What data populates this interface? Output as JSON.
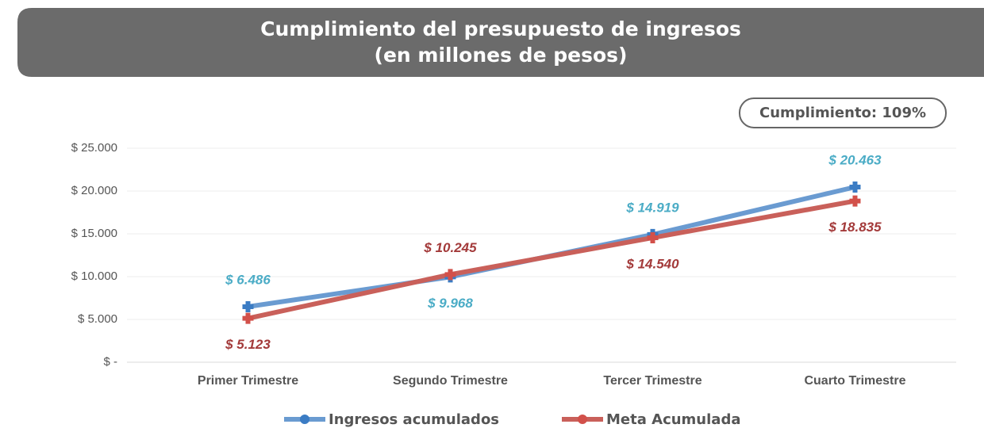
{
  "chart_data": {
    "type": "line",
    "title": "Cumplimiento del presupuesto de ingresos",
    "subtitle": "(en millones de pesos)",
    "annotation": "Cumplimiento: 109%",
    "categories": [
      "Primer Trimestre",
      "Segundo Trimestre",
      "Tercer Trimestre",
      "Cuarto Trimestre"
    ],
    "series": [
      {
        "name": "Ingresos acumulados",
        "color": "#6a9bd1",
        "marker_color": "#3b7cc4",
        "label_color": "#4bacc6",
        "values": [
          6486,
          9968,
          14919,
          20463
        ],
        "value_labels": [
          "$ 6.486",
          "$ 9.968",
          "$ 14.919",
          "$ 20.463"
        ]
      },
      {
        "name": "Meta Acumulada",
        "color": "#c9605a",
        "marker_color": "#d2504a",
        "label_color": "#a33a3a",
        "values": [
          5123,
          10245,
          14540,
          18835
        ],
        "value_labels": [
          "$ 5.123",
          "$ 10.245",
          "$ 14.540",
          "$ 18.835"
        ]
      }
    ],
    "ylim": [
      0,
      25000
    ],
    "yticks": [
      {
        "value": 0,
        "label": "$ -"
      },
      {
        "value": 5000,
        "label": "$ 5.000"
      },
      {
        "value": 10000,
        "label": "$ 10.000"
      },
      {
        "value": 15000,
        "label": "$ 15.000"
      },
      {
        "value": 20000,
        "label": "$ 20.000"
      },
      {
        "value": 25000,
        "label": "$ 25.000"
      }
    ],
    "grid": true,
    "legend": "bottom"
  }
}
